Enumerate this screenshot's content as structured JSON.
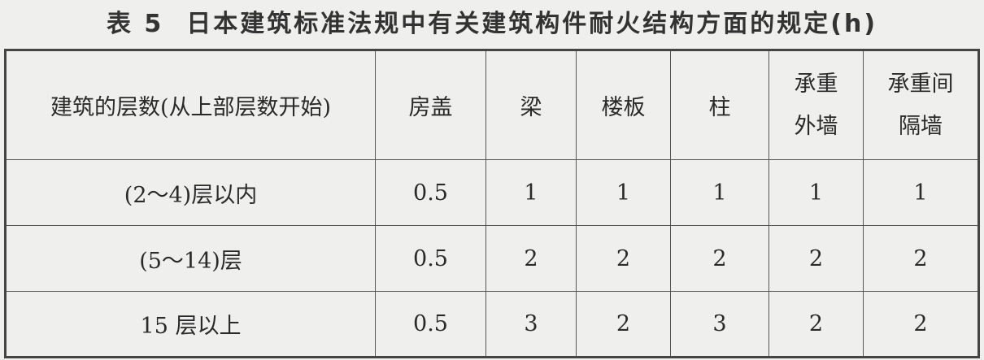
{
  "title": {
    "label": "表 5",
    "text": "日本建筑标准法规中有关建筑构件耐火结构方面的规定(h)"
  },
  "table": {
    "headers": [
      "建筑的层数(从上部层数开始)",
      "房盖",
      "梁",
      "楼板",
      "柱",
      "承重外墙",
      "承重间隔墙"
    ],
    "header_lines": {
      "5": [
        "承重",
        "外墙"
      ],
      "6": [
        "承重间",
        "隔墙"
      ]
    },
    "rows": [
      [
        "(2～4)层以内",
        "0.5",
        "1",
        "1",
        "1",
        "1",
        "1"
      ],
      [
        "(5～14)层",
        "0.5",
        "2",
        "2",
        "2",
        "2",
        "2"
      ],
      [
        "15 层以上",
        "0.5",
        "3",
        "2",
        "3",
        "2",
        "2"
      ]
    ]
  }
}
